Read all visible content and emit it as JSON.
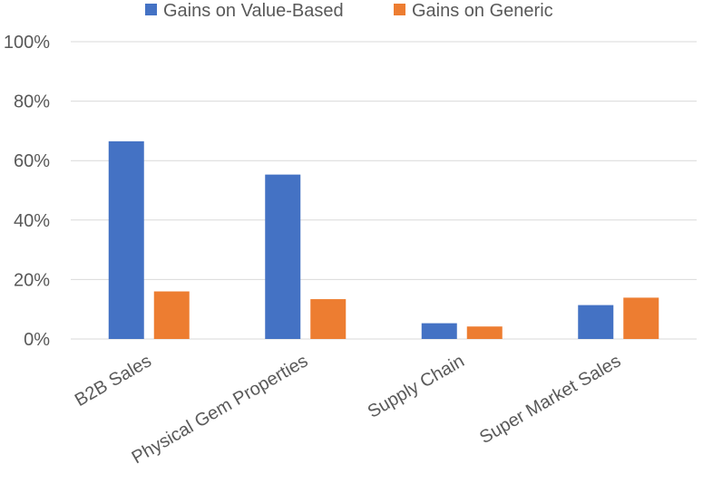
{
  "chart_data": {
    "type": "bar",
    "title": "",
    "xlabel": "",
    "ylabel": "",
    "categories": [
      "B2B Sales",
      "Physical Gem Properties",
      "Supply Chain",
      "Super Market Sales"
    ],
    "series": [
      {
        "name": "Gains on Value-Based",
        "color": "#4472c4",
        "values": [
          0.665,
          0.553,
          0.053,
          0.114
        ]
      },
      {
        "name": "Gains on Generic",
        "color": "#ed7d31",
        "values": [
          0.16,
          0.134,
          0.042,
          0.139
        ]
      }
    ],
    "ylim": [
      0,
      1
    ],
    "yticks": [
      "0%",
      "20%",
      "40%",
      "60%",
      "80%",
      "100%"
    ],
    "ytick_values": [
      0,
      0.2,
      0.4,
      0.6,
      0.8,
      1.0
    ],
    "legend_position": "top-center",
    "grid": true
  }
}
